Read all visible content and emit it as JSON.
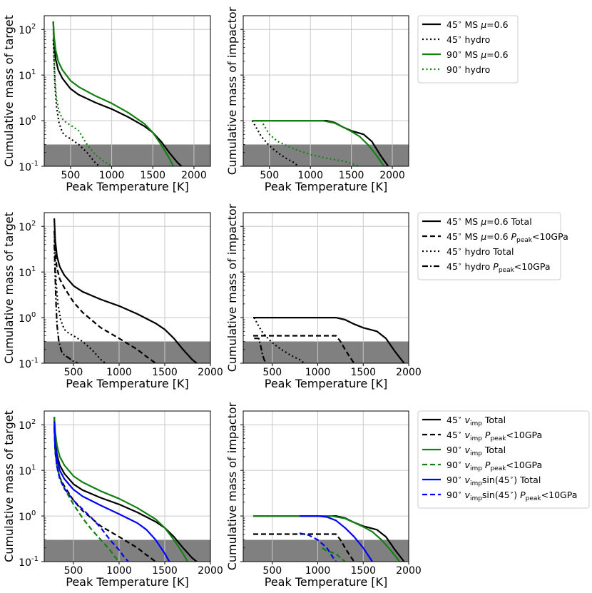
{
  "figure": {
    "xlabel": "Peak Temperature [K]"
  },
  "colors": {
    "black": "#000000",
    "green": "#118011",
    "blue": "#0000ff",
    "shade": "#808080",
    "grid": "#c8c8c8"
  },
  "x_ticks": [
    "500",
    "1000",
    "1500",
    "2000"
  ],
  "y_ticks": [
    "10",
    "10",
    "10",
    "10"
  ],
  "y_tick_exps": [
    "2",
    "1",
    "0",
    "-1"
  ],
  "shaded_region": {
    "y_max": 0.3
  },
  "rows": [
    {
      "left_ylabel": "Cumulative mass of target",
      "right_ylabel": "Cumulative mass of impactor",
      "legend": [
        {
          "text": "45$^\\circ$ MS $\\mu=0.6$",
          "color": "#000000",
          "dash": "solid"
        },
        {
          "text": "45$^\\circ$ hydro",
          "color": "#000000",
          "dash": "dotted"
        },
        {
          "text": "90$^\\circ$ MS $\\mu=0.6$",
          "color": "#118011",
          "dash": "solid"
        },
        {
          "text": "90$^\\circ$ hydro",
          "color": "#118011",
          "dash": "dotted"
        }
      ]
    },
    {
      "left_ylabel": "Cumulative mass of target",
      "right_ylabel": "Cumulative mass of impactor",
      "legend": [
        {
          "text": "45$^\\circ$ MS $\\mu$=0.6 Total",
          "color": "#000000",
          "dash": "solid"
        },
        {
          "text": "45$^\\circ$ MS $\\mu$=0.6 $P_{\\rm peak}$<10GPa",
          "color": "#000000",
          "dash": "dashed"
        },
        {
          "text": "45$^\\circ$ hydro Total",
          "color": "#000000",
          "dash": "dotted"
        },
        {
          "text": "45$^\\circ$ hydro $P_{\\rm peak}$<10GPa",
          "color": "#000000",
          "dash": "dashdot"
        }
      ]
    },
    {
      "left_ylabel": "Cumulative mass of target",
      "right_ylabel": "Cumulative mass of impactor",
      "legend": [
        {
          "text": "45$^\\circ$ $v_{\\rm imp}$ Total",
          "color": "#000000",
          "dash": "solid"
        },
        {
          "text": "45$^\\circ$ $v_{\\rm imp}$ $P_{\\rm peak}$<10GPa",
          "color": "#000000",
          "dash": "dashed"
        },
        {
          "text": "90$^\\circ$ $v_{\\rm imp}$ Total",
          "color": "#118011",
          "dash": "solid"
        },
        {
          "text": "90$^\\circ$ $v_{\\rm imp}$ $P_{\\rm peak}$<10GPa",
          "color": "#118011",
          "dash": "dashed"
        },
        {
          "text": "90$^\\circ$ $v_{\\rm imp}$sin(45$^\\circ$) Total",
          "color": "#0000ff",
          "dash": "solid"
        },
        {
          "text": "90$^\\circ$ $v_{\\rm imp}$sin(45$^\\circ$) $P_{\\rm peak}$<10GPa",
          "color": "#0000ff",
          "dash": "dashed"
        }
      ]
    }
  ],
  "chart_data": [
    {
      "type": "line",
      "panel": "row1-target",
      "xlim": [
        180,
        2200
      ],
      "ylim": [
        0.1,
        200
      ],
      "yscale": "log",
      "grid": true,
      "series": [
        {
          "name": "45$^\\circ$ MS $\\mu=0.6$",
          "color": "#000000",
          "dash": "solid",
          "x": [
            290,
            300,
            320,
            350,
            400,
            500,
            600,
            800,
            1000,
            1200,
            1400,
            1500,
            1600,
            1700,
            1800,
            1850
          ],
          "y": [
            150,
            50,
            22,
            13,
            8.5,
            5,
            3.7,
            2.5,
            1.8,
            1.2,
            0.75,
            0.55,
            0.35,
            0.2,
            0.12,
            0.1
          ]
        },
        {
          "name": "45$^\\circ$ hydro",
          "color": "#000000",
          "dash": "dotted",
          "x": [
            290,
            300,
            310,
            330,
            360,
            400,
            450,
            500,
            600,
            700,
            800,
            850
          ],
          "y": [
            60,
            20,
            6,
            2,
            0.9,
            0.55,
            0.45,
            0.4,
            0.3,
            0.2,
            0.12,
            0.1
          ]
        },
        {
          "name": "90$^\\circ$ MS $\\mu=0.6$",
          "color": "#118011",
          "dash": "solid",
          "x": [
            290,
            300,
            320,
            350,
            400,
            500,
            600,
            800,
            1000,
            1200,
            1400,
            1500,
            1600,
            1700,
            1750
          ],
          "y": [
            150,
            70,
            35,
            20,
            13,
            7.5,
            5.5,
            3.5,
            2.4,
            1.5,
            0.85,
            0.55,
            0.3,
            0.15,
            0.1
          ]
        },
        {
          "name": "90$^\\circ$ hydro",
          "color": "#118011",
          "dash": "dotted",
          "x": [
            290,
            300,
            310,
            330,
            360,
            400,
            450,
            500,
            600,
            700,
            800,
            900,
            1000
          ],
          "y": [
            100,
            25,
            8,
            3,
            1.6,
            1.1,
            0.9,
            0.8,
            0.6,
            0.3,
            0.18,
            0.13,
            0.1
          ]
        }
      ]
    },
    {
      "type": "line",
      "panel": "row1-impactor",
      "xlim": [
        180,
        2200
      ],
      "ylim": [
        0.1,
        200
      ],
      "yscale": "log",
      "grid": true,
      "series": [
        {
          "name": "45$^\\circ$ MS $\\mu=0.6$",
          "color": "#000000",
          "dash": "solid",
          "x": [
            290,
            1200,
            1300,
            1400,
            1500,
            1650,
            1750,
            1850,
            1950
          ],
          "y": [
            1.0,
            1.0,
            0.9,
            0.72,
            0.6,
            0.5,
            0.35,
            0.18,
            0.1
          ]
        },
        {
          "name": "45$^\\circ$ hydro",
          "color": "#000000",
          "dash": "dotted",
          "x": [
            290,
            350,
            400,
            500,
            600,
            700,
            800,
            850
          ],
          "y": [
            1.0,
            0.65,
            0.45,
            0.28,
            0.2,
            0.15,
            0.12,
            0.1
          ]
        },
        {
          "name": "90$^\\circ$ MS $\\mu=0.6$",
          "color": "#118011",
          "dash": "solid",
          "x": [
            290,
            1150,
            1300,
            1400,
            1500,
            1600,
            1700,
            1800,
            1900
          ],
          "y": [
            1.0,
            1.0,
            0.88,
            0.72,
            0.58,
            0.45,
            0.3,
            0.18,
            0.1
          ]
        },
        {
          "name": "90$^\\circ$ hydro",
          "color": "#118011",
          "dash": "dotted",
          "x": [
            300,
            400,
            450,
            500,
            600,
            800,
            1000,
            1200,
            1400,
            1600
          ],
          "y": [
            1.0,
            1.0,
            0.7,
            0.5,
            0.35,
            0.24,
            0.18,
            0.15,
            0.13,
            0.1
          ]
        }
      ]
    },
    {
      "type": "line",
      "panel": "row2-target",
      "xlim": [
        180,
        2000
      ],
      "ylim": [
        0.1,
        200
      ],
      "yscale": "log",
      "grid": true,
      "series": [
        {
          "name": "45$^\\circ$ MS $\\mu$=0.6 Total",
          "color": "#000000",
          "dash": "solid",
          "x": [
            290,
            300,
            320,
            350,
            400,
            500,
            600,
            800,
            1000,
            1200,
            1400,
            1500,
            1600,
            1700,
            1800,
            1850
          ],
          "y": [
            150,
            50,
            22,
            13,
            8.5,
            5,
            3.7,
            2.5,
            1.8,
            1.2,
            0.75,
            0.55,
            0.35,
            0.2,
            0.12,
            0.1
          ]
        },
        {
          "name": "45$^\\circ$ MS $\\mu$=0.6 $P_{\\rm peak}$<10GPa",
          "color": "#000000",
          "dash": "dashed",
          "x": [
            290,
            300,
            320,
            350,
            400,
            500,
            600,
            800,
            1000,
            1200,
            1300,
            1400
          ],
          "y": [
            80,
            25,
            12,
            7,
            4.5,
            2.2,
            1.3,
            0.6,
            0.35,
            0.2,
            0.14,
            0.1
          ]
        },
        {
          "name": "45$^\\circ$ hydro Total",
          "color": "#000000",
          "dash": "dotted",
          "x": [
            290,
            300,
            310,
            330,
            360,
            400,
            450,
            500,
            600,
            700,
            800,
            850
          ],
          "y": [
            60,
            20,
            6,
            2,
            0.9,
            0.55,
            0.45,
            0.4,
            0.3,
            0.2,
            0.12,
            0.1
          ]
        },
        {
          "name": "45$^\\circ$ hydro $P_{\\rm peak}$<10GPa",
          "color": "#000000",
          "dash": "dashdot",
          "x": [
            290,
            300,
            310,
            320,
            340,
            370,
            400,
            450,
            500,
            550
          ],
          "y": [
            40,
            8,
            2,
            0.7,
            0.3,
            0.18,
            0.15,
            0.13,
            0.11,
            0.1
          ]
        }
      ]
    },
    {
      "type": "line",
      "panel": "row2-impactor",
      "xlim": [
        180,
        2000
      ],
      "ylim": [
        0.1,
        200
      ],
      "yscale": "log",
      "grid": true,
      "series": [
        {
          "name": "45$^\\circ$ MS $\\mu$=0.6 Total",
          "color": "#000000",
          "dash": "solid",
          "x": [
            290,
            1200,
            1300,
            1400,
            1500,
            1650,
            1750,
            1850,
            1950
          ],
          "y": [
            1.0,
            1.0,
            0.9,
            0.72,
            0.6,
            0.5,
            0.35,
            0.18,
            0.1
          ]
        },
        {
          "name": "45$^\\circ$ MS $\\mu$=0.6 $P_{\\rm peak}$<10GPa",
          "color": "#000000",
          "dash": "dashed",
          "x": [
            290,
            1200,
            1250,
            1300,
            1350,
            1400
          ],
          "y": [
            0.4,
            0.4,
            0.3,
            0.2,
            0.14,
            0.1
          ]
        },
        {
          "name": "45$^\\circ$ hydro Total",
          "color": "#000000",
          "dash": "dotted",
          "x": [
            300,
            350,
            400,
            500,
            600,
            700,
            800,
            850
          ],
          "y": [
            1.0,
            0.65,
            0.45,
            0.28,
            0.2,
            0.15,
            0.12,
            0.1
          ]
        },
        {
          "name": "45$^\\circ$ hydro $P_{\\rm peak}$<10GPa",
          "color": "#000000",
          "dash": "dashdot",
          "x": [
            300,
            350,
            370,
            390,
            410,
            430
          ],
          "y": [
            0.35,
            0.35,
            0.25,
            0.16,
            0.12,
            0.1
          ]
        }
      ]
    },
    {
      "type": "line",
      "panel": "row3-target",
      "xlim": [
        180,
        2000
      ],
      "ylim": [
        0.1,
        200
      ],
      "yscale": "log",
      "grid": true,
      "series": [
        {
          "name": "45$^\\circ$ $v_{\\rm imp}$ Total",
          "color": "#000000",
          "dash": "solid",
          "x": [
            290,
            300,
            320,
            350,
            400,
            500,
            600,
            800,
            1000,
            1200,
            1400,
            1500,
            1600,
            1700,
            1800,
            1850
          ],
          "y": [
            150,
            50,
            22,
            13,
            8.5,
            5,
            3.7,
            2.5,
            1.8,
            1.2,
            0.75,
            0.55,
            0.35,
            0.2,
            0.12,
            0.1
          ]
        },
        {
          "name": "45$^\\circ$ $v_{\\rm imp}$ $P_{\\rm peak}$<10GPa",
          "color": "#000000",
          "dash": "dashed",
          "x": [
            290,
            300,
            320,
            350,
            400,
            500,
            600,
            800,
            1000,
            1200,
            1300,
            1400
          ],
          "y": [
            80,
            25,
            12,
            7,
            4.5,
            2.2,
            1.3,
            0.6,
            0.35,
            0.2,
            0.14,
            0.1
          ]
        },
        {
          "name": "90$^\\circ$ $v_{\\rm imp}$ Total",
          "color": "#118011",
          "dash": "solid",
          "x": [
            290,
            300,
            320,
            350,
            400,
            500,
            600,
            800,
            1000,
            1200,
            1400,
            1500,
            1600,
            1700,
            1750
          ],
          "y": [
            150,
            70,
            35,
            20,
            13,
            7.5,
            5.5,
            3.5,
            2.4,
            1.5,
            0.85,
            0.55,
            0.3,
            0.15,
            0.1
          ]
        },
        {
          "name": "90$^\\circ$ $v_{\\rm imp}$ $P_{\\rm peak}$<10GPa",
          "color": "#118011",
          "dash": "dashed",
          "x": [
            290,
            300,
            320,
            350,
            400,
            500,
            600,
            700,
            800,
            900,
            950,
            1000
          ],
          "y": [
            100,
            30,
            13,
            7,
            4,
            1.8,
            0.9,
            0.5,
            0.3,
            0.18,
            0.13,
            0.1
          ]
        },
        {
          "name": "90$^\\circ$ $v_{\\rm imp}$sin(45$^\\circ$) Total",
          "color": "#0000ff",
          "dash": "solid",
          "x": [
            290,
            300,
            320,
            350,
            400,
            500,
            600,
            800,
            1000,
            1200,
            1300,
            1400,
            1500,
            1550
          ],
          "y": [
            120,
            40,
            18,
            10,
            6.5,
            3.8,
            2.7,
            1.7,
            1.1,
            0.7,
            0.5,
            0.3,
            0.15,
            0.1
          ]
        },
        {
          "name": "90$^\\circ$ $v_{\\rm imp}$sin(45$^\\circ$) $P_{\\rm peak}$<10GPa",
          "color": "#0000ff",
          "dash": "dashed",
          "x": [
            290,
            300,
            320,
            350,
            400,
            500,
            600,
            700,
            800,
            900,
            1000,
            1050,
            1100
          ],
          "y": [
            90,
            28,
            12,
            6.5,
            4,
            2.2,
            1.4,
            0.9,
            0.55,
            0.3,
            0.18,
            0.13,
            0.1
          ]
        }
      ]
    },
    {
      "type": "line",
      "panel": "row3-impactor",
      "xlim": [
        180,
        2000
      ],
      "ylim": [
        0.1,
        200
      ],
      "yscale": "log",
      "grid": true,
      "series": [
        {
          "name": "45$^\\circ$ $v_{\\rm imp}$ Total",
          "color": "#000000",
          "dash": "solid",
          "x": [
            290,
            1200,
            1300,
            1400,
            1500,
            1650,
            1750,
            1850,
            1950
          ],
          "y": [
            1.0,
            1.0,
            0.9,
            0.72,
            0.6,
            0.5,
            0.35,
            0.18,
            0.1
          ]
        },
        {
          "name": "45$^\\circ$ $v_{\\rm imp}$ $P_{\\rm peak}$<10GPa",
          "color": "#000000",
          "dash": "dashed",
          "x": [
            290,
            1200,
            1250,
            1300,
            1350,
            1400
          ],
          "y": [
            0.4,
            0.4,
            0.3,
            0.2,
            0.14,
            0.1
          ]
        },
        {
          "name": "90$^\\circ$ $v_{\\rm imp}$ Total",
          "color": "#118011",
          "dash": "solid",
          "x": [
            290,
            1150,
            1300,
            1400,
            1500,
            1600,
            1700,
            1800,
            1900
          ],
          "y": [
            1.0,
            1.0,
            0.88,
            0.72,
            0.58,
            0.45,
            0.3,
            0.18,
            0.1
          ]
        },
        {
          "name": "90$^\\circ$ $v_{\\rm imp}$ $P_{\\rm peak}$<10GPa",
          "color": "#118011",
          "dash": "dashed",
          "x": [
            1050,
            1100,
            1200,
            1250,
            1300
          ],
          "y": [
            0.2,
            0.17,
            0.15,
            0.12,
            0.1
          ]
        },
        {
          "name": "90$^\\circ$ $v_{\\rm imp}$sin(45$^\\circ$) Total",
          "color": "#0000ff",
          "dash": "solid",
          "x": [
            800,
            1000,
            1100,
            1200,
            1300,
            1400,
            1500,
            1600
          ],
          "y": [
            1.0,
            1.0,
            0.95,
            0.8,
            0.55,
            0.35,
            0.2,
            0.1
          ]
        },
        {
          "name": "90$^\\circ$ $v_{\\rm imp}$sin(45$^\\circ$) $P_{\\rm peak}$<10GPa",
          "color": "#0000ff",
          "dash": "dashed",
          "x": [
            800,
            900,
            1000,
            1100,
            1150,
            1200
          ],
          "y": [
            0.42,
            0.38,
            0.3,
            0.2,
            0.14,
            0.1
          ]
        }
      ]
    }
  ]
}
